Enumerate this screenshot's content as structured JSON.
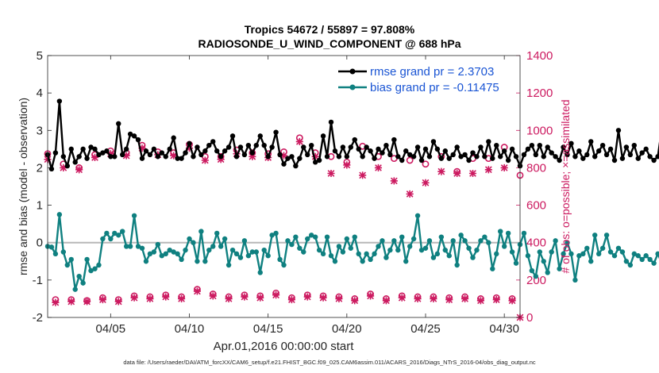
{
  "chart_data": {
    "type": "line",
    "title": "Tropics 54672 / 55897 = 97.808%",
    "subtitle": "RADIOSONDE_U_WIND_COMPONENT @ 688 hPa",
    "xlabel": "Apr.01,2016 00:00:00 start",
    "ylabel": "rmse and bias (model - observation)",
    "ylabel_right": "# of obs: o=possible; ×=assimilated",
    "footer": "data file: /Users/raeder/DAI/ATM_forcXX/CAM6_setup/f.e21.FHIST_BGC.f09_025.CAM6assim.011/ACARS_2016/Diags_NTrS_2016-04/obs_diag_output.nc",
    "x_range": [
      1,
      31
    ],
    "x_ticks": [
      5,
      10,
      15,
      20,
      25,
      30
    ],
    "x_tick_labels": [
      "04/05",
      "04/10",
      "04/15",
      "04/20",
      "04/25",
      "04/30"
    ],
    "ylim": [
      -2,
      5
    ],
    "y_ticks": [
      -2,
      -1,
      0,
      1,
      2,
      3,
      4,
      5
    ],
    "y_tick_labels": [
      "-2",
      "-1",
      "0",
      "1",
      "2",
      "3",
      "4",
      "5"
    ],
    "ylim_right": [
      0,
      1400
    ],
    "y_ticks_right": [
      0,
      200,
      400,
      600,
      800,
      1000,
      1200,
      1400
    ],
    "y_tick_labels_right": [
      "0",
      "200",
      "400",
      "600",
      "800",
      "1000",
      "1200",
      "1400"
    ],
    "zero_line": 0,
    "x_step_days": 0.25,
    "colors": {
      "rmse": "#000000",
      "bias": "#0f8080",
      "obs": "#cc1a60",
      "legend_text": "#1a55d4",
      "zero_line": "#b8b8b8"
    },
    "series": [
      {
        "name": "rmse grand pr = 2.3703",
        "values": [
          2.35,
          1.97,
          2.4,
          3.78,
          2.3,
          2.05,
          2.5,
          2.15,
          2.3,
          2.5,
          2.25,
          2.55,
          2.5,
          2.35,
          2.4,
          2.45,
          2.3,
          2.3,
          3.18,
          2.35,
          2.5,
          2.9,
          2.85,
          2.75,
          2.25,
          2.45,
          2.35,
          2.5,
          2.3,
          2.4,
          2.3,
          2.5,
          2.8,
          2.25,
          2.25,
          2.4,
          2.65,
          2.3,
          2.55,
          2.35,
          2.45,
          2.6,
          2.7,
          2.45,
          2.3,
          2.45,
          2.55,
          2.85,
          2.3,
          2.55,
          2.35,
          2.6,
          2.4,
          2.6,
          2.85,
          2.6,
          2.3,
          2.55,
          2.95,
          2.35,
          2.1,
          2.25,
          2.3,
          2.05,
          2.25,
          2.55,
          2.35,
          2.6,
          2.15,
          2.2,
          2.85,
          2.3,
          3.22,
          2.45,
          2.3,
          2.55,
          2.3,
          2.55,
          2.75,
          2.5,
          2.3,
          2.55,
          2.45,
          2.25,
          2.5,
          2.4,
          2.6,
          2.35,
          2.75,
          2.3,
          2.2,
          2.45,
          2.35,
          2.3,
          2.55,
          2.2,
          2.5,
          2.3,
          2.7,
          2.5,
          2.25,
          2.45,
          2.25,
          2.35,
          2.55,
          2.3,
          2.35,
          2.2,
          2.4,
          2.3,
          2.55,
          2.3,
          2.7,
          2.25,
          2.6,
          2.3,
          2.45,
          2.2,
          2.5,
          2.3,
          2.05,
          2.35,
          2.5,
          2.6,
          2.35,
          2.6,
          2.3,
          2.55,
          2.4,
          2.3,
          2.2,
          2.55,
          2.35,
          2.65,
          2.3,
          2.45,
          2.25,
          2.35,
          2.7,
          2.3,
          2.45,
          2.6,
          2.35,
          2.5,
          2.2,
          3.0,
          2.25,
          2.55,
          2.35,
          2.6,
          2.25,
          2.4,
          2.5,
          2.3,
          2.2,
          2.3,
          3.05
        ]
      },
      {
        "name": "bias grand pr = -0.11475",
        "values": [
          -0.1,
          -0.12,
          -0.3,
          0.75,
          -0.25,
          -0.6,
          -0.45,
          -1.25,
          -0.9,
          -1.08,
          -0.45,
          -0.75,
          -0.7,
          -0.6,
          0.1,
          0.25,
          0.1,
          0.25,
          0.2,
          0.3,
          -0.1,
          -0.1,
          0.72,
          -0.1,
          -0.15,
          -0.5,
          -0.3,
          -0.25,
          -0.05,
          -0.35,
          -0.3,
          -0.2,
          -0.25,
          -0.3,
          -0.45,
          -0.2,
          0.1,
          0.0,
          -0.5,
          0.3,
          -0.5,
          -0.2,
          -0.1,
          0.25,
          -0.1,
          0.1,
          -0.6,
          -0.2,
          -0.3,
          -0.4,
          0.05,
          -0.35,
          -0.25,
          -0.25,
          -0.8,
          -0.2,
          -0.35,
          0.2,
          0.25,
          -0.45,
          -0.6,
          0.05,
          -0.05,
          0.15,
          -0.15,
          -0.25,
          0.1,
          0.2,
          0.15,
          -0.2,
          -0.3,
          0.15,
          -0.35,
          -0.5,
          -0.1,
          -0.25,
          0.1,
          -0.15,
          0.15,
          -0.3,
          -0.5,
          -0.3,
          -0.45,
          -0.3,
          -0.1,
          0.05,
          -0.4,
          -0.2,
          0.05,
          -0.2,
          0.15,
          -0.5,
          -0.1,
          0.1,
          0.72,
          -0.2,
          -0.15,
          0.05,
          -0.4,
          -0.3,
          0.15,
          -0.2,
          -0.35,
          0.05,
          -0.6,
          0.2,
          0.05,
          -0.15,
          -0.4,
          -0.2,
          0.05,
          0.15,
          0.0,
          -0.7,
          -0.3,
          0.3,
          -0.1,
          0.25,
          -0.25,
          -0.55,
          -0.05,
          0.25,
          -0.35,
          -0.75,
          -0.9,
          -0.25,
          -0.5,
          -0.8,
          -0.25,
          0.05,
          -0.7,
          -0.3,
          0.0,
          -0.3,
          -1.0,
          -0.35,
          -0.3,
          -0.15,
          -0.5,
          0.2,
          -0.3,
          -0.15,
          0.2,
          -0.25,
          -0.35,
          -0.15,
          -0.25,
          -0.5,
          -0.6,
          -0.3,
          -0.35,
          -0.45,
          -0.35,
          -0.45,
          -0.55,
          -0.3,
          -0.55
        ]
      },
      {
        "name": "# of obs possible",
        "axis": "right",
        "start_day": 1.0,
        "step_days": 0.5,
        "values": [
          875,
          95,
          820,
          95,
          800,
          90,
          870,
          105,
          890,
          95,
          880,
          115,
          920,
          110,
          885,
          120,
          880,
          110,
          925,
          150,
          860,
          125,
          860,
          110,
          895,
          120,
          880,
          115,
          875,
          130,
          885,
          105,
          960,
          120,
          880,
          115,
          860,
          110,
          830,
          100,
          915,
          125,
          860,
          100,
          850,
          115,
          840,
          110,
          820,
          110,
          860,
          105,
          780,
          110,
          850,
          100,
          850,
          105,
          910,
          100,
          760
        ]
      },
      {
        "name": "# of obs assimilated",
        "axis": "right",
        "start_day": 1.0,
        "step_days": 0.5,
        "values": [
          845,
          80,
          800,
          85,
          790,
          85,
          855,
          95,
          875,
          85,
          865,
          105,
          905,
          100,
          870,
          110,
          865,
          100,
          905,
          140,
          840,
          115,
          845,
          100,
          875,
          110,
          860,
          105,
          855,
          120,
          865,
          95,
          940,
          110,
          860,
          105,
          770,
          100,
          815,
          90,
          760,
          115,
          800,
          90,
          730,
          105,
          660,
          100,
          720,
          100,
          780,
          95,
          770,
          100,
          770,
          90,
          790,
          95,
          800,
          90,
          0
        ]
      }
    ]
  }
}
